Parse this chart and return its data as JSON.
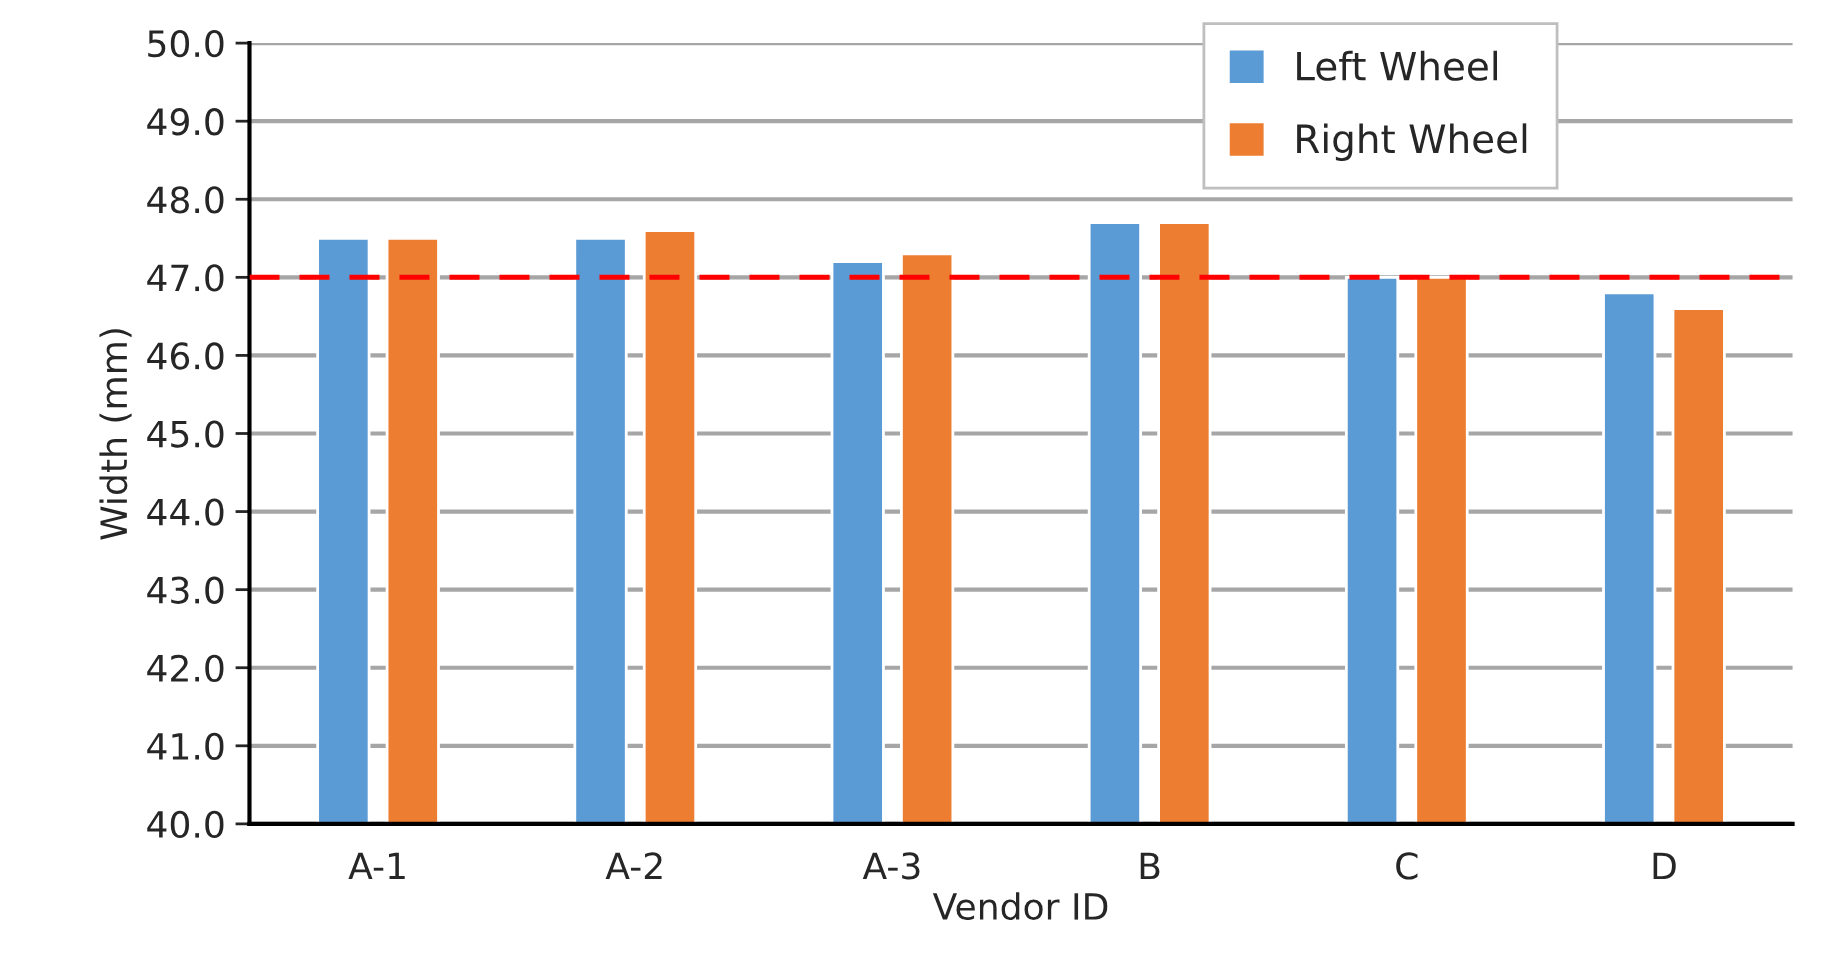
{
  "chart_data": {
    "type": "bar",
    "xlabel": "Vendor ID",
    "ylabel": "Width (mm)",
    "categories": [
      "A-1",
      "A-2",
      "A-3",
      "B",
      "C",
      "D"
    ],
    "series": [
      {
        "name": "Left Wheel",
        "color": "#5b9bd5",
        "values": [
          47.5,
          47.5,
          47.2,
          47.7,
          47.0,
          46.8
        ]
      },
      {
        "name": "Right Wheel",
        "color": "#ed7d31",
        "values": [
          47.5,
          47.6,
          47.3,
          47.7,
          47.0,
          46.6
        ]
      }
    ],
    "ylim": [
      40,
      50
    ],
    "yticks": [
      {
        "value": 40,
        "label": "40.0"
      },
      {
        "value": 41,
        "label": "41.0"
      },
      {
        "value": 42,
        "label": "42.0"
      },
      {
        "value": 43,
        "label": "43.0"
      },
      {
        "value": 44,
        "label": "44.0"
      },
      {
        "value": 45,
        "label": "45.0"
      },
      {
        "value": 46,
        "label": "46.0"
      },
      {
        "value": 47,
        "label": "47.0"
      },
      {
        "value": 48,
        "label": "48.0"
      },
      {
        "value": 49,
        "label": "49.0"
      },
      {
        "value": 50,
        "label": "50.0"
      }
    ],
    "ref_lines": [
      {
        "axis": "y",
        "value": 47,
        "color": "#ff0000",
        "line_style": "dashed"
      }
    ],
    "grid": "y",
    "legend": "top right"
  }
}
